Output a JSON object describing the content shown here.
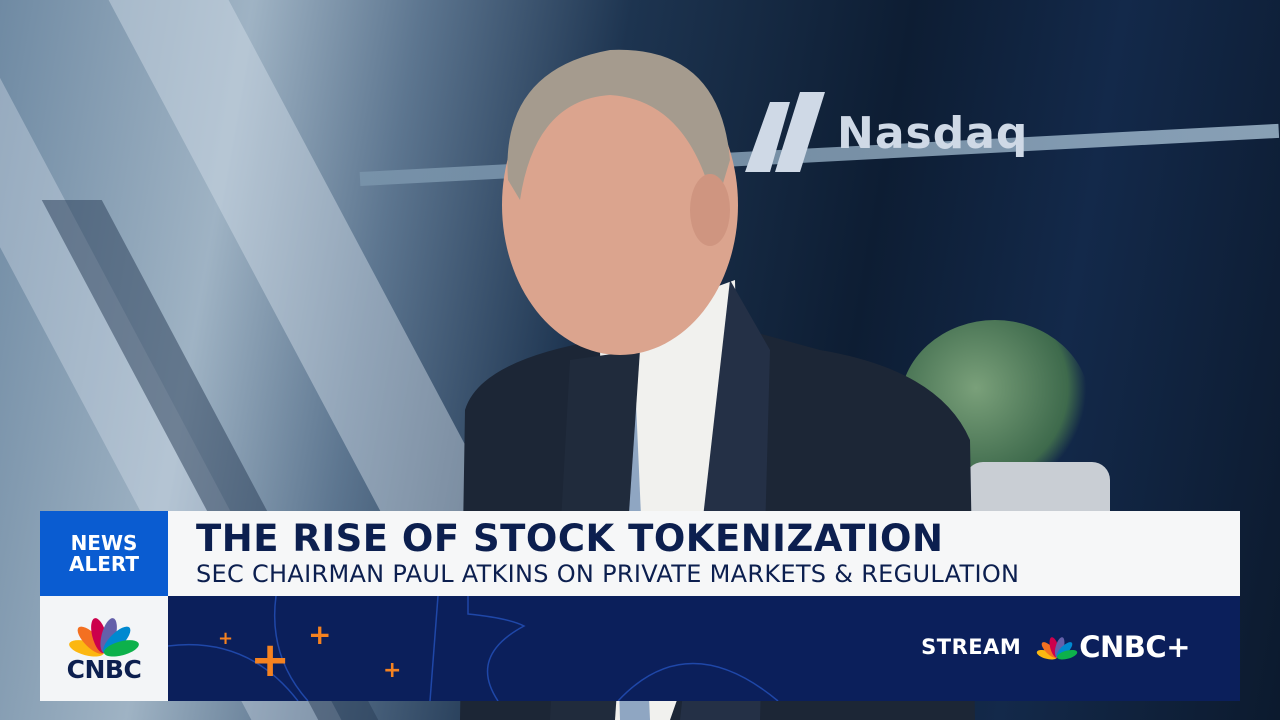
{
  "background": {
    "sign_text": "Nasdaq"
  },
  "chyron": {
    "badge_line1": "NEWS",
    "badge_line2": "ALERT",
    "network_logo": "CNBC",
    "headline": "THE RISE OF STOCK TOKENIZATION",
    "subheadline": "SEC CHAIRMAN PAUL ATKINS ON PRIVATE MARKETS & REGULATION",
    "promo_prefix": "STREAM",
    "promo_brand": "CNBC+"
  },
  "colors": {
    "badge_blue": "#0a5cd1",
    "navy": "#0b1f5b",
    "accent_orange": "#f58220",
    "text_navy": "#0c1f4f"
  },
  "icons": [
    "nbc-peacock-icon",
    "nasdaq-logo-icon",
    "plus-icon"
  ]
}
